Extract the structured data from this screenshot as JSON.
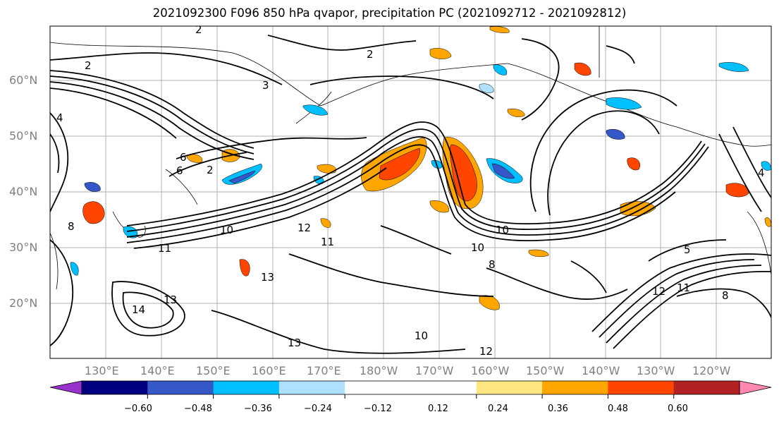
{
  "title": "2021092300 F096 850 hPa qvapor, precipitation PC (2021092712 - 2021092812)",
  "lat_labels": [
    "60°N",
    "50°N",
    "40°N",
    "30°N",
    "20°N"
  ],
  "lon_labels": [
    "130°E",
    "140°E",
    "150°E",
    "160°E",
    "170°E",
    "180°W",
    "170°W",
    "160°W",
    "150°W",
    "140°W",
    "130°W",
    "120°W"
  ],
  "colorbar": {
    "colors": [
      "#9932CC",
      "#000080",
      "#3557C8",
      "#00BFFF",
      "#B0E0FF",
      "#FFFFFF",
      "#FFFFFF",
      "#FFE680",
      "#FFA500",
      "#FF4500",
      "#B22222",
      "#FF88B0"
    ],
    "ticks": [
      "−0.60",
      "−0.48",
      "−0.36",
      "−0.24",
      "−0.12",
      "0.12",
      "0.24",
      "0.36",
      "0.48",
      "0.60"
    ]
  },
  "contour_labels": [
    "2",
    "2",
    "2",
    "2",
    "3",
    "4",
    "4",
    "6",
    "8",
    "10",
    "10",
    "10",
    "10",
    "11",
    "11",
    "11",
    "12",
    "12",
    "12",
    "13",
    "13",
    "13",
    "14",
    "8",
    "6",
    "8",
    "5"
  ]
}
